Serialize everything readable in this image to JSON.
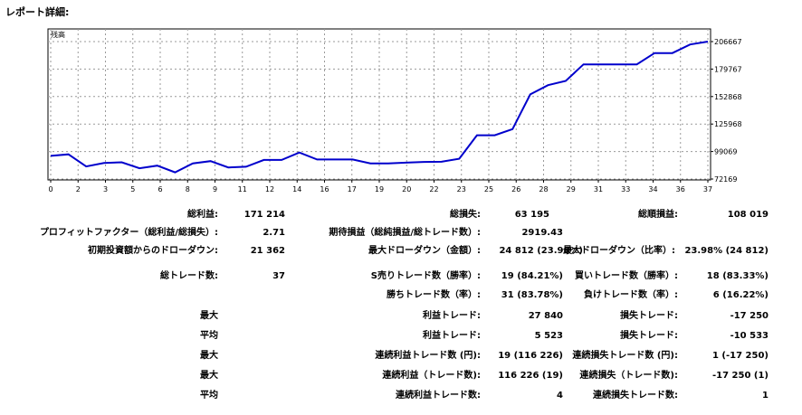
{
  "page_title": "レポート詳細:",
  "chart_data": {
    "type": "line",
    "label": "残高",
    "x_ticks": [
      "0",
      "2",
      "3",
      "5",
      "6",
      "8",
      "9",
      "11",
      "12",
      "14",
      "16",
      "17",
      "19",
      "20",
      "22",
      "23",
      "25",
      "26",
      "28",
      "29",
      "31",
      "33",
      "34",
      "36",
      "37"
    ],
    "y_ticks": [
      "206667",
      "179767",
      "152868",
      "125968",
      "99069",
      "72169"
    ],
    "ylim": [
      72169,
      206667
    ],
    "grid": true,
    "line_color": "#0000cc",
    "series": [
      {
        "values": [
          94800,
          96300,
          84500,
          87800,
          88500,
          82700,
          85300,
          78700,
          87500,
          89700,
          83500,
          84200,
          90800,
          90800,
          98100,
          91300,
          91300,
          91300,
          87500,
          87500,
          88200,
          88900,
          89100,
          92000,
          115000,
          115000,
          121000,
          155000,
          164000,
          168200,
          184400,
          184400,
          184400,
          184400,
          195400,
          195400,
          203800,
          206667
        ]
      }
    ]
  },
  "stats": {
    "row1": {
      "l1": "総利益:",
      "v1": "171 214",
      "l2": "総損失:",
      "v2": "63 195",
      "l3": "総順損益:",
      "v3": "108 019"
    },
    "row2": {
      "l1": "プロフィットファクター（総利益/総損失）:",
      "v1": "2.71",
      "l2": "期待損益（総純損益/総トレード数）:",
      "v2": "2919.43"
    },
    "row3": {
      "l1": "初期投資額からのドローダウン:",
      "v1": "21 362",
      "l2": "最大ドローダウン（金額）:",
      "v2": "24 812 (23.98%)",
      "l3": "最大ドローダウン（比率）:",
      "v3": "23.98% (24 812)"
    },
    "row4": {
      "l1": "総トレード数:",
      "v1": "37",
      "l2": "S売りトレード数（勝率）:",
      "v2": "19 (84.21%)",
      "l3": "買いトレード数（勝率）:",
      "v3": "18 (83.33%)"
    },
    "row5": {
      "l2": "勝ちトレード数（率）:",
      "v2": "31 (83.78%)",
      "l3": "負けトレード数（率）:",
      "v3": "6 (16.22%)"
    },
    "row6": {
      "l1": "最大",
      "l2": "利益トレード:",
      "v2": "27 840",
      "l3": "損失トレード:",
      "v3": "-17 250"
    },
    "row7": {
      "l1": "平均",
      "l2": "利益トレード:",
      "v2": "5 523",
      "l3": "損失トレード:",
      "v3": "-10 533"
    },
    "row8": {
      "l1": "最大",
      "l2": "連続利益トレード数 (円):",
      "v2": "19 (116 226)",
      "l3": "連続損失トレード数 (円):",
      "v3": "1 (-17 250)"
    },
    "row9": {
      "l1": "最大",
      "l2": "連続利益（トレード数):",
      "v2": "116 226 (19)",
      "l3": "連続損失（トレード数):",
      "v3": "-17 250 (1)"
    },
    "row10": {
      "l1": "平均",
      "l2": "連続利益トレード数:",
      "v2": "4",
      "l3": "連続損失トレード数:",
      "v3": "1"
    }
  }
}
